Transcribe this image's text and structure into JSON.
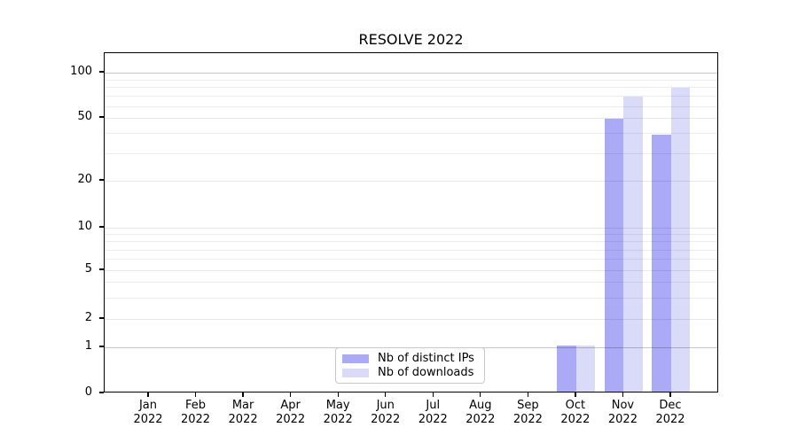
{
  "chart_data": {
    "type": "bar",
    "title": "RESOLVE 2022",
    "categories": [
      "Jan",
      "Feb",
      "Mar",
      "Apr",
      "May",
      "Jun",
      "Jul",
      "Aug",
      "Sep",
      "Oct",
      "Nov",
      "Dec"
    ],
    "category_year": "2022",
    "series": [
      {
        "name": "Nb of distinct IPs",
        "color": "#aaaaf7",
        "values": [
          0,
          0,
          0,
          0,
          0,
          0,
          0,
          0,
          0,
          1,
          48,
          38
        ]
      },
      {
        "name": "Nb of downloads",
        "color": "#dadaf9",
        "values": [
          0,
          0,
          0,
          0,
          0,
          0,
          0,
          0,
          0,
          1,
          67,
          77
        ]
      }
    ],
    "y_axis": {
      "scale": "symlog",
      "ticks": [
        0,
        1,
        2,
        5,
        10,
        20,
        50,
        100
      ],
      "minor_ticks": [
        3,
        4,
        6,
        7,
        8,
        9,
        30,
        40,
        60,
        70,
        80,
        90
      ],
      "range_top": 140
    },
    "x_axis": {
      "label": "",
      "tick_style": "month-over-year"
    },
    "legend": {
      "position": "lower-center"
    },
    "grid": true
  }
}
